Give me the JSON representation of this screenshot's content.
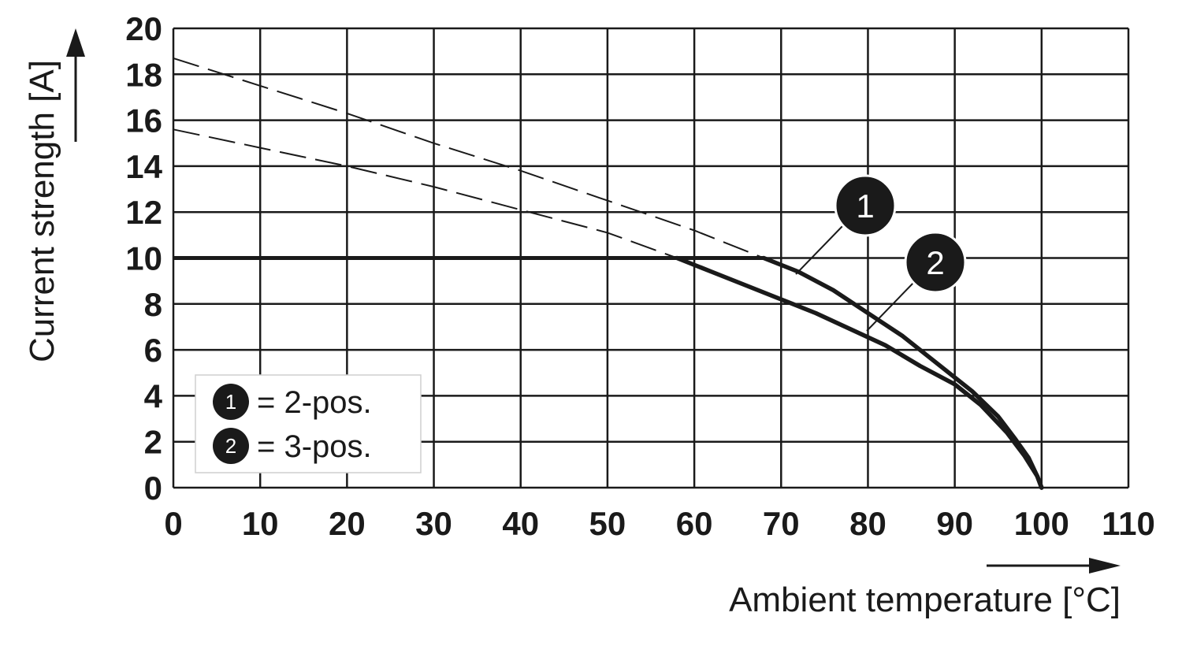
{
  "chart_data": {
    "type": "line",
    "xlabel": "Ambient temperature [°C]",
    "ylabel": "Current strength [A]",
    "xlim": [
      0,
      110
    ],
    "ylim": [
      0,
      20
    ],
    "x_ticks": [
      "0",
      "10",
      "20",
      "30",
      "40",
      "50",
      "60",
      "70",
      "80",
      "90",
      "100",
      "110"
    ],
    "y_ticks": [
      "0",
      "2",
      "4",
      "6",
      "8",
      "10",
      "12",
      "14",
      "16",
      "18",
      "20"
    ],
    "grid": true,
    "legend_position": "bottom-left",
    "legend": [
      {
        "marker": "1",
        "text": "= 2-pos."
      },
      {
        "marker": "2",
        "text": "= 3-pos."
      }
    ],
    "limit_line": {
      "y": 10,
      "x_range": [
        0,
        68
      ]
    },
    "series": [
      {
        "marker": "1",
        "derating_solid": [
          [
            68,
            10
          ],
          [
            72,
            9.4
          ],
          [
            76,
            8.6
          ],
          [
            80,
            7.6
          ],
          [
            84,
            6.6
          ],
          [
            88,
            5.4
          ],
          [
            92,
            4.2
          ],
          [
            95,
            3.1
          ],
          [
            97,
            2.1
          ],
          [
            98.5,
            1.3
          ],
          [
            99.5,
            0.5
          ],
          [
            100,
            0
          ]
        ],
        "extrapolation_dashed": [
          [
            0,
            18.7
          ],
          [
            10,
            17.5
          ],
          [
            20,
            16.3
          ],
          [
            30,
            15.0
          ],
          [
            40,
            13.8
          ],
          [
            50,
            12.5
          ],
          [
            60,
            11.2
          ],
          [
            68,
            10
          ]
        ]
      },
      {
        "marker": "2",
        "derating_solid": [
          [
            58,
            10
          ],
          [
            62,
            9.4
          ],
          [
            66,
            8.8
          ],
          [
            70,
            8.2
          ],
          [
            74,
            7.6
          ],
          [
            78,
            6.9
          ],
          [
            82,
            6.2
          ],
          [
            86,
            5.3
          ],
          [
            90,
            4.5
          ],
          [
            93,
            3.6
          ],
          [
            96,
            2.4
          ],
          [
            98,
            1.4
          ],
          [
            99.5,
            0.5
          ],
          [
            100,
            0
          ]
        ],
        "extrapolation_dashed": [
          [
            0,
            15.6
          ],
          [
            10,
            14.8
          ],
          [
            20,
            14.0
          ],
          [
            30,
            13.1
          ],
          [
            40,
            12.1
          ],
          [
            50,
            11.1
          ],
          [
            58,
            10
          ]
        ]
      }
    ]
  },
  "colors": {
    "ink": "#1a1a1a",
    "grid": "#1a1a1a",
    "background": "#ffffff"
  }
}
